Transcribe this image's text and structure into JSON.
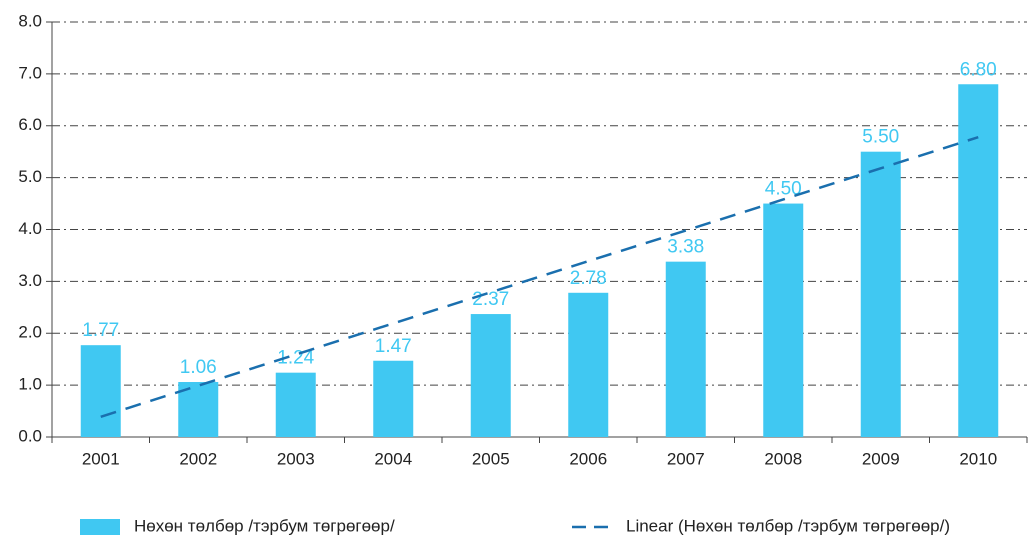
{
  "chart_data": {
    "type": "bar",
    "categories": [
      "2001",
      "2002",
      "2003",
      "2004",
      "2005",
      "2006",
      "2007",
      "2008",
      "2009",
      "2010"
    ],
    "series": [
      {
        "name": "Нөхөн төлбөр /тэрбум төгрөгөөр/",
        "color": "#40c8f2",
        "values": [
          1.77,
          1.06,
          1.24,
          1.47,
          2.37,
          2.78,
          3.38,
          4.5,
          5.5,
          6.8
        ],
        "value_labels": [
          "1.77",
          "1.06",
          "1.24",
          "1.47",
          "2.37",
          "2.78",
          "3.38",
          "4.50",
          "5.50",
          "6.80"
        ]
      },
      {
        "name": "Linear (Нөхөн төлбөр /тэрбум төгрөгөөр/)",
        "color": "#1a6fae",
        "type": "line",
        "linestyle": "dashed",
        "values": [
          0.39,
          0.99,
          1.59,
          2.19,
          2.79,
          3.39,
          3.98,
          4.58,
          5.18,
          5.78
        ]
      }
    ],
    "ylim": [
      0,
      8
    ],
    "yticks": [
      {
        "value": 0,
        "label": "0.0"
      },
      {
        "value": 1,
        "label": "1.0"
      },
      {
        "value": 2,
        "label": "2.0"
      },
      {
        "value": 3,
        "label": "3.0"
      },
      {
        "value": 4,
        "label": "4.0"
      },
      {
        "value": 5,
        "label": "5.0"
      },
      {
        "value": 6,
        "label": "6.0"
      },
      {
        "value": 7,
        "label": "7.0"
      },
      {
        "value": 8,
        "label": "8.0"
      }
    ],
    "grid": true
  }
}
